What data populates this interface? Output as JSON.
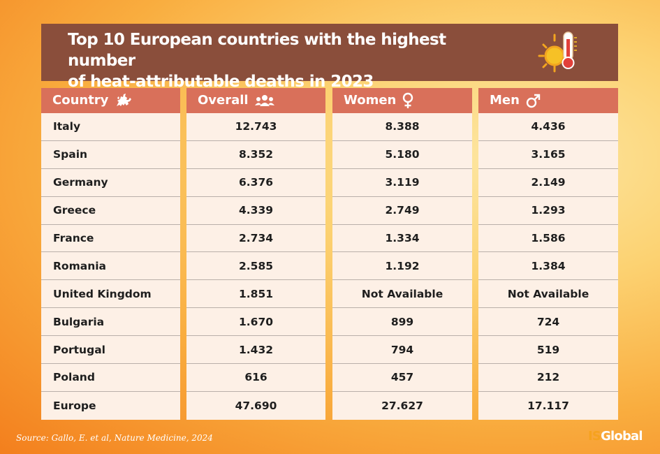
{
  "header": {
    "title_line1": "Top 10 European countries with the highest number",
    "title_line2": "of heat-attributable deaths in 2023",
    "icon": "sun-thermometer-icon"
  },
  "table": {
    "columns": [
      {
        "label": "Country",
        "icon": "europe-map-icon"
      },
      {
        "label": "Overall",
        "icon": "people-group-icon"
      },
      {
        "label": "Women",
        "icon": "female-symbol-icon"
      },
      {
        "label": "Men",
        "icon": "male-symbol-icon"
      }
    ],
    "rows": [
      {
        "country": "Italy",
        "overall": "12.743",
        "women": "8.388",
        "men": "4.436"
      },
      {
        "country": "Spain",
        "overall": "8.352",
        "women": "5.180",
        "men": "3.165"
      },
      {
        "country": "Germany",
        "overall": "6.376",
        "women": "3.119",
        "men": "2.149"
      },
      {
        "country": "Greece",
        "overall": "4.339",
        "women": "2.749",
        "men": "1.293"
      },
      {
        "country": "France",
        "overall": "2.734",
        "women": "1.334",
        "men": "1.586"
      },
      {
        "country": "Romania",
        "overall": "2.585",
        "women": "1.192",
        "men": "1.384"
      },
      {
        "country": "United Kingdom",
        "overall": "1.851",
        "women": "Not Available",
        "men": "Not Available"
      },
      {
        "country": "Bulgaria",
        "overall": "1.670",
        "women": "899",
        "men": "724"
      },
      {
        "country": "Portugal",
        "overall": "1.432",
        "women": "794",
        "men": "519"
      },
      {
        "country": "Poland",
        "overall": "616",
        "women": "457",
        "men": "212"
      },
      {
        "country": "Europe",
        "overall": "47.690",
        "women": "27.627",
        "men": "17.117"
      }
    ]
  },
  "footer": {
    "source": "Source: Gallo, E. et al, Nature Medicine, 2024",
    "logo_is": "IS",
    "logo_global": "Global"
  },
  "colors": {
    "title_bg": "#8a4e3b",
    "header_bg": "#d9705a",
    "cell_bg": "#fdf0e6",
    "logo_accent": "#f6a21e"
  }
}
